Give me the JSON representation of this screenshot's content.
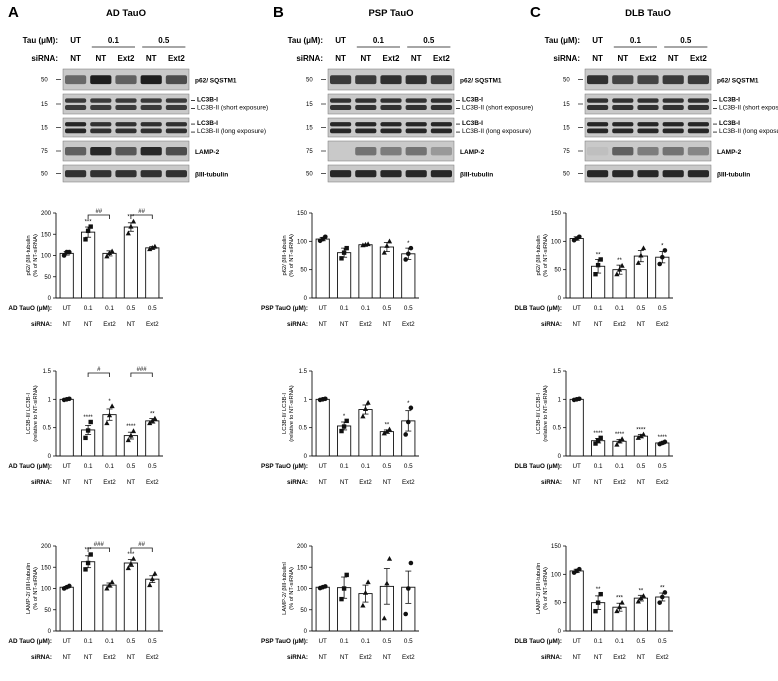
{
  "panels": [
    {
      "letter": "A",
      "title": "AD TauO",
      "tau_label": "Tau (μM):",
      "sirna_label": "siRNA:",
      "tau_values": [
        "UT",
        "0.1",
        "0.5"
      ],
      "sirna_values": [
        "NT",
        "NT",
        "Ext2",
        "NT",
        "Ext2"
      ],
      "blots": [
        {
          "mw": "50",
          "labels": [
            "p62/ SQSTM1"
          ],
          "intensity": [
            0.55,
            0.95,
            0.6,
            0.95,
            0.7
          ]
        },
        {
          "mw": "15",
          "labels": [
            "LC3B-I",
            "LC3B-II (short exposure)"
          ],
          "intensity": [
            0.8,
            0.8,
            0.8,
            0.8,
            0.8
          ]
        },
        {
          "mw": "15",
          "labels": [
            "LC3B-I",
            "LC3B-II (long exposure)"
          ],
          "intensity": [
            0.9,
            0.85,
            0.85,
            0.85,
            0.85
          ]
        },
        {
          "mw": "75",
          "labels": [
            "LAMP-2"
          ],
          "intensity": [
            0.6,
            0.9,
            0.65,
            0.9,
            0.7
          ]
        },
        {
          "mw": "50",
          "labels": [
            "βIII-tubulin"
          ],
          "intensity": [
            0.85,
            0.85,
            0.85,
            0.85,
            0.85
          ]
        }
      ],
      "xrow1_label": "AD TauO (μM):",
      "xrow2_label": "siRNA:",
      "xrow1": [
        "UT",
        "0.1",
        "0.1",
        "0.5",
        "0.5"
      ],
      "xrow2": [
        "NT",
        "NT",
        "Ext2",
        "NT",
        "Ext2"
      ]
    },
    {
      "letter": "B",
      "title": "PSP TauO",
      "tau_label": "Tau (μM):",
      "sirna_label": "siRNA:",
      "tau_values": [
        "UT",
        "0.1",
        "0.5"
      ],
      "sirna_values": [
        "NT",
        "NT",
        "Ext2",
        "NT",
        "Ext2"
      ],
      "blots": [
        {
          "mw": "50",
          "labels": [
            "p62/ SQSTM1"
          ],
          "intensity": [
            0.8,
            0.8,
            0.85,
            0.85,
            0.8
          ]
        },
        {
          "mw": "15",
          "labels": [
            "LC3B-I",
            "LC3B-II (short exposure)"
          ],
          "intensity": [
            0.85,
            0.85,
            0.85,
            0.85,
            0.85
          ]
        },
        {
          "mw": "15",
          "labels": [
            "LC3B-I",
            "LC3B-II (long exposure)"
          ],
          "intensity": [
            0.9,
            0.9,
            0.9,
            0.9,
            0.9
          ]
        },
        {
          "mw": "75",
          "labels": [
            "LAMP-2"
          ],
          "intensity": [
            0.05,
            0.5,
            0.45,
            0.5,
            0.3
          ]
        },
        {
          "mw": "50",
          "labels": [
            "βIII-tubulin"
          ],
          "intensity": [
            0.9,
            0.9,
            0.9,
            0.9,
            0.9
          ]
        }
      ],
      "xrow1_label": "PSP TauO (μM):",
      "xrow2_label": "siRNA:",
      "xrow1": [
        "UT",
        "0.1",
        "0.1",
        "0.5",
        "0.5"
      ],
      "xrow2": [
        "NT",
        "NT",
        "Ext2",
        "NT",
        "Ext2"
      ]
    },
    {
      "letter": "C",
      "title": "DLB TauO",
      "tau_label": "Tau (μM):",
      "sirna_label": "siRNA:",
      "tau_values": [
        "UT",
        "0.1",
        "0.5"
      ],
      "sirna_values": [
        "NT",
        "NT",
        "Ext2",
        "NT",
        "Ext2"
      ],
      "blots": [
        {
          "mw": "50",
          "labels": [
            "p62/ SQSTM1"
          ],
          "intensity": [
            0.85,
            0.75,
            0.75,
            0.8,
            0.8
          ]
        },
        {
          "mw": "15",
          "labels": [
            "LC3B-I",
            "LC3B-II (short exposure)"
          ],
          "intensity": [
            0.85,
            0.85,
            0.85,
            0.85,
            0.85
          ]
        },
        {
          "mw": "15",
          "labels": [
            "LC3B-I",
            "LC3B-II (long exposure)"
          ],
          "intensity": [
            0.9,
            0.9,
            0.9,
            0.9,
            0.9
          ]
        },
        {
          "mw": "75",
          "labels": [
            "LAMP-2"
          ],
          "intensity": [
            0.1,
            0.6,
            0.45,
            0.5,
            0.4
          ]
        },
        {
          "mw": "50",
          "labels": [
            "βIII-tubulin"
          ],
          "intensity": [
            0.9,
            0.9,
            0.9,
            0.9,
            0.9
          ]
        }
      ],
      "xrow1_label": "DLB TauO (μM):",
      "xrow2_label": "siRNA:",
      "xrow1": [
        "UT",
        "0.1",
        "0.1",
        "0.5",
        "0.5"
      ],
      "xrow2": [
        "NT",
        "NT",
        "Ext2",
        "NT",
        "Ext2"
      ]
    }
  ],
  "chart_data": [
    {
      "panel": "A",
      "type": "bar",
      "ylabel": "p62/ βIII-tubulin (% of NT-siRNA)",
      "ylim": [
        0,
        200
      ],
      "yticks": [
        0,
        50,
        100,
        150,
        200
      ],
      "values": [
        105,
        155,
        105,
        167,
        118
      ],
      "errors": [
        4,
        12,
        6,
        10,
        3
      ],
      "points": [
        [
          100,
          108,
          108
        ],
        [
          138,
          158,
          168
        ],
        [
          98,
          106,
          110
        ],
        [
          152,
          168,
          180
        ],
        [
          115,
          118,
          121
        ]
      ],
      "markers": [
        "circle",
        "square",
        "triangle",
        "triangle",
        "triangle"
      ],
      "stars": [
        "",
        "***",
        "",
        "***",
        ""
      ],
      "brackets": [
        {
          "from": 1,
          "to": 2,
          "label": "##"
        },
        {
          "from": 3,
          "to": 4,
          "label": "##"
        }
      ]
    },
    {
      "panel": "B",
      "type": "bar",
      "ylabel": "p62/ βIII-tubulin (% of NT-siRNA)",
      "ylim": [
        0,
        150
      ],
      "yticks": [
        0,
        50,
        100,
        150
      ],
      "values": [
        104,
        80,
        94,
        90,
        78
      ],
      "errors": [
        3,
        8,
        1,
        8,
        10
      ],
      "points": [
        [
          101,
          104,
          108
        ],
        [
          70,
          80,
          88
        ],
        [
          93,
          94,
          95
        ],
        [
          80,
          92,
          100
        ],
        [
          68,
          78,
          88
        ]
      ],
      "markers": [
        "circle",
        "square",
        "triangle",
        "triangle",
        "circle"
      ],
      "stars": [
        "",
        "",
        "",
        "",
        "*"
      ],
      "brackets": []
    },
    {
      "panel": "C",
      "type": "bar",
      "ylabel": "p62/ βIII-tubulin (% of NT-siRNA)",
      "ylim": [
        0,
        150
      ],
      "yticks": [
        0,
        50,
        100,
        150
      ],
      "values": [
        105,
        56,
        50,
        74,
        72
      ],
      "errors": [
        3,
        12,
        8,
        10,
        10
      ],
      "points": [
        [
          102,
          105,
          108
        ],
        [
          42,
          58,
          68
        ],
        [
          42,
          50,
          57
        ],
        [
          62,
          75,
          88
        ],
        [
          60,
          72,
          84
        ]
      ],
      "markers": [
        "circle",
        "square",
        "triangle",
        "triangle",
        "circle"
      ],
      "stars": [
        "",
        "**",
        "**",
        "",
        "*"
      ],
      "brackets": []
    },
    {
      "panel": "A",
      "type": "bar",
      "ylabel": "LC3B-II/ LC3B-I (relative to NT-siRNA)",
      "ylim": [
        0,
        1.5
      ],
      "yticks": [
        0,
        0.5,
        1.0,
        1.5
      ],
      "values": [
        1.0,
        0.46,
        0.73,
        0.36,
        0.62
      ],
      "errors": [
        0.01,
        0.08,
        0.1,
        0.06,
        0.04
      ],
      "points": [
        [
          0.99,
          1.0,
          1.01
        ],
        [
          0.32,
          0.45,
          0.6
        ],
        [
          0.58,
          0.72,
          0.88
        ],
        [
          0.28,
          0.36,
          0.44
        ],
        [
          0.58,
          0.62,
          0.66
        ]
      ],
      "markers": [
        "circle",
        "square",
        "triangle",
        "triangle",
        "triangle"
      ],
      "stars": [
        "",
        "****",
        "*",
        "****",
        "**"
      ],
      "brackets": [
        {
          "from": 1,
          "to": 2,
          "label": "#"
        },
        {
          "from": 3,
          "to": 4,
          "label": "###"
        }
      ]
    },
    {
      "panel": "B",
      "type": "bar",
      "ylabel": "LC3B-II/ LC3B-I (relative to NT-siRNA)",
      "ylim": [
        0,
        1.5
      ],
      "yticks": [
        0,
        0.5,
        1.0,
        1.5
      ],
      "values": [
        1.0,
        0.53,
        0.82,
        0.43,
        0.62
      ],
      "errors": [
        0.01,
        0.07,
        0.08,
        0.03,
        0.18
      ],
      "points": [
        [
          0.99,
          1.0,
          1.01
        ],
        [
          0.44,
          0.52,
          0.62
        ],
        [
          0.7,
          0.83,
          0.94
        ],
        [
          0.4,
          0.43,
          0.47
        ],
        [
          0.38,
          0.6,
          0.85
        ]
      ],
      "markers": [
        "circle",
        "square",
        "triangle",
        "triangle",
        "circle"
      ],
      "stars": [
        "",
        "*",
        "",
        "**",
        "*"
      ],
      "brackets": []
    },
    {
      "panel": "C",
      "type": "bar",
      "ylabel": "LC3B-II/ LC3B-I (relative to NT-siRNA)",
      "ylim": [
        0,
        1.5
      ],
      "yticks": [
        0,
        0.5,
        1.0,
        1.5
      ],
      "values": [
        1.0,
        0.27,
        0.26,
        0.35,
        0.23
      ],
      "errors": [
        0.01,
        0.04,
        0.03,
        0.03,
        0.02
      ],
      "points": [
        [
          0.99,
          1.0,
          1.01
        ],
        [
          0.22,
          0.27,
          0.32
        ],
        [
          0.2,
          0.26,
          0.3
        ],
        [
          0.32,
          0.35,
          0.38
        ],
        [
          0.21,
          0.23,
          0.25
        ]
      ],
      "markers": [
        "circle",
        "square",
        "triangle",
        "triangle",
        "circle"
      ],
      "stars": [
        "",
        "****",
        "****",
        "****",
        "****"
      ],
      "brackets": []
    },
    {
      "panel": "A",
      "type": "bar",
      "ylabel": "LAMP-2/ βIII-tubulin (% of NT-siRNA)",
      "ylim": [
        0,
        200
      ],
      "yticks": [
        0,
        50,
        100,
        150,
        200
      ],
      "values": [
        103,
        163,
        108,
        160,
        122
      ],
      "errors": [
        2,
        14,
        5,
        8,
        8
      ],
      "points": [
        [
          100,
          103,
          106
        ],
        [
          145,
          160,
          180
        ],
        [
          100,
          108,
          115
        ],
        [
          148,
          158,
          170
        ],
        [
          108,
          122,
          135
        ]
      ],
      "markers": [
        "circle",
        "square",
        "triangle",
        "triangle",
        "triangle"
      ],
      "stars": [
        "",
        "***",
        "",
        "***",
        ""
      ],
      "brackets": [
        {
          "from": 1,
          "to": 2,
          "label": "###"
        },
        {
          "from": 3,
          "to": 4,
          "label": "##"
        }
      ]
    },
    {
      "panel": "B",
      "type": "bar",
      "ylabel": "LAMP-2/ βIII-tubulinl (% of NT-siRNA)",
      "ylim": [
        0,
        200
      ],
      "yticks": [
        0,
        50,
        100,
        150,
        200
      ],
      "values": [
        103,
        102,
        88,
        105,
        103
      ],
      "errors": [
        2,
        25,
        20,
        42,
        38
      ],
      "points": [
        [
          101,
          103,
          105
        ],
        [
          75,
          100,
          132
        ],
        [
          60,
          90,
          115
        ],
        [
          30,
          112,
          170
        ],
        [
          40,
          100,
          160
        ]
      ],
      "markers": [
        "circle",
        "square",
        "triangle",
        "triangle",
        "circle"
      ],
      "stars": [
        "",
        "",
        "",
        "",
        ""
      ],
      "brackets": []
    },
    {
      "panel": "C",
      "type": "bar",
      "ylabel": "LAMP-2/ βIII-tubulin (% of NT-siRNA)",
      "ylim": [
        0,
        150
      ],
      "yticks": [
        0,
        50,
        100,
        150
      ],
      "values": [
        106,
        50,
        42,
        58,
        60
      ],
      "errors": [
        3,
        12,
        7,
        5,
        7
      ],
      "points": [
        [
          103,
          106,
          109
        ],
        [
          35,
          50,
          65
        ],
        [
          35,
          42,
          50
        ],
        [
          52,
          58,
          62
        ],
        [
          50,
          60,
          68
        ]
      ],
      "markers": [
        "circle",
        "square",
        "triangle",
        "triangle",
        "circle"
      ],
      "stars": [
        "",
        "**",
        "***",
        "**",
        "**"
      ],
      "brackets": []
    }
  ]
}
